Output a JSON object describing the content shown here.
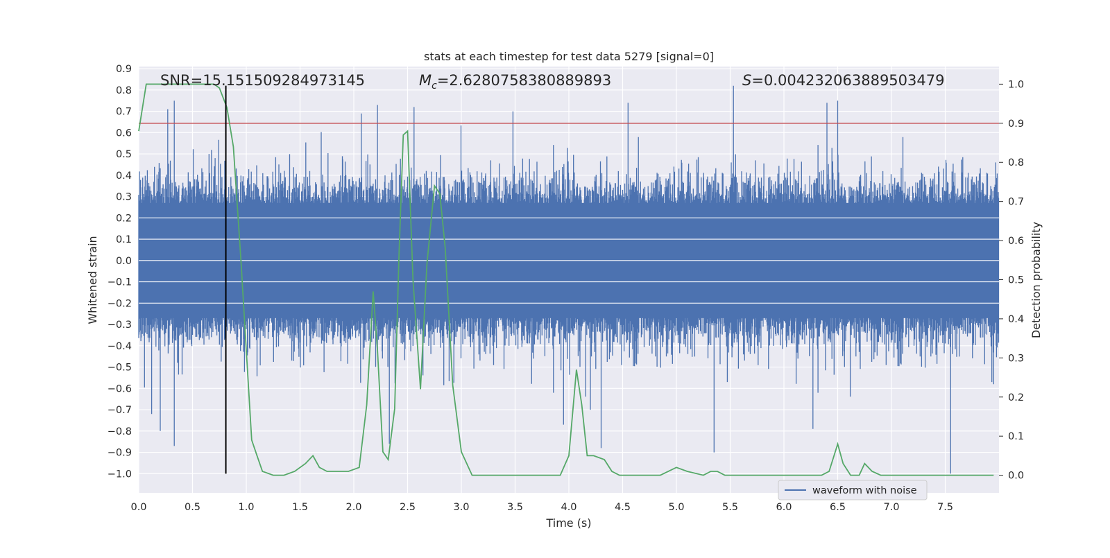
{
  "chart_data": {
    "type": "line",
    "title": "stats at each timestep for test data 5279 [signal=0]",
    "xlabel": "Time (s)",
    "ylabel": "Whitened strain",
    "y2label": "Detection probability",
    "xlim": [
      0.0,
      8.0
    ],
    "ylim": [
      -1.09,
      0.91
    ],
    "y2lim": [
      -0.045,
      1.045
    ],
    "xticks": [
      "0.0",
      "0.5",
      "1.0",
      "1.5",
      "2.0",
      "2.5",
      "3.0",
      "3.5",
      "4.0",
      "4.5",
      "5.0",
      "5.5",
      "6.0",
      "6.5",
      "7.0",
      "7.5"
    ],
    "yticks": [
      "0.9",
      "0.8",
      "0.7",
      "0.6",
      "0.5",
      "0.4",
      "0.3",
      "0.2",
      "0.1",
      "0.0",
      "−0.1",
      "−0.2",
      "−0.3",
      "−0.4",
      "−0.5",
      "−0.6",
      "−0.7",
      "−0.8",
      "−0.9",
      "−1.0"
    ],
    "y2ticks": [
      "1.0",
      "0.9",
      "0.8",
      "0.7",
      "0.6",
      "0.5",
      "0.4",
      "0.3",
      "0.2",
      "0.1",
      "0.0"
    ],
    "grid": true,
    "annotations": {
      "snr": "SNR=15.151509284973145",
      "mc_symbol": "M",
      "mc_subscript": "c",
      "mc_value": "=2.6280758380889893",
      "s_symbol": "S",
      "s_value": "=0.004232063889503479"
    },
    "legend": {
      "position": "lower right",
      "entries": [
        "waveform with noise"
      ]
    },
    "colors": {
      "waveform": "#4c72b0",
      "probability": "#55a868",
      "threshold": "#c44e52",
      "marker": "#000000",
      "background": "#eaeaf2"
    },
    "threshold_probability": 0.9,
    "marker_line": {
      "x": 0.81,
      "y_from": -1.0,
      "y_to": 0.82
    },
    "waveform": {
      "description_values": "noisy whitened strain sampled across 0-8 s",
      "typical_envelope": [
        -0.35,
        0.45
      ],
      "peaks": [
        {
          "x": 0.27,
          "y": 0.71
        },
        {
          "x": 0.33,
          "y": 0.75
        },
        {
          "x": 0.33,
          "y": -0.87
        },
        {
          "x": 0.2,
          "y": -0.8
        },
        {
          "x": 0.12,
          "y": -0.72
        },
        {
          "x": 2.07,
          "y": 0.69
        },
        {
          "x": 2.22,
          "y": 0.73
        },
        {
          "x": 2.33,
          "y": -0.86
        },
        {
          "x": 2.56,
          "y": 0.72
        },
        {
          "x": 3.48,
          "y": 0.7
        },
        {
          "x": 3.95,
          "y": -0.77
        },
        {
          "x": 4.2,
          "y": -0.7
        },
        {
          "x": 4.3,
          "y": -0.88
        },
        {
          "x": 4.55,
          "y": 0.74
        },
        {
          "x": 5.35,
          "y": -0.9
        },
        {
          "x": 5.53,
          "y": 0.82
        },
        {
          "x": 6.27,
          "y": -0.79
        },
        {
          "x": 6.5,
          "y": 0.75
        },
        {
          "x": 6.4,
          "y": 0.74
        },
        {
          "x": 7.55,
          "y": -1.0
        },
        {
          "x": 7.95,
          "y": -0.58
        }
      ]
    },
    "probability_series": {
      "name": "",
      "x": [
        0.0,
        0.07,
        0.15,
        0.25,
        0.4,
        0.55,
        0.7,
        0.75,
        0.82,
        0.88,
        0.95,
        1.0,
        1.05,
        1.1,
        1.15,
        1.25,
        1.35,
        1.45,
        1.55,
        1.62,
        1.68,
        1.75,
        1.85,
        1.95,
        2.05,
        2.12,
        2.18,
        2.22,
        2.27,
        2.32,
        2.38,
        2.42,
        2.46,
        2.5,
        2.55,
        2.62,
        2.68,
        2.75,
        2.8,
        2.85,
        2.92,
        3.0,
        3.1,
        3.2,
        3.35,
        3.5,
        3.65,
        3.8,
        3.92,
        4.0,
        4.07,
        4.12,
        4.17,
        4.23,
        4.33,
        4.4,
        4.47,
        4.55,
        4.7,
        4.85,
        5.0,
        5.1,
        5.25,
        5.32,
        5.38,
        5.45,
        5.6,
        5.8,
        6.0,
        6.2,
        6.35,
        6.42,
        6.5,
        6.55,
        6.62,
        6.7,
        6.75,
        6.82,
        6.9,
        7.1,
        7.3,
        7.5,
        7.7,
        7.95
      ],
      "y": [
        0.88,
        1.0,
        1.0,
        1.0,
        1.0,
        1.0,
        1.0,
        0.99,
        0.94,
        0.84,
        0.55,
        0.32,
        0.09,
        0.05,
        0.01,
        0.0,
        0.0,
        0.01,
        0.03,
        0.05,
        0.02,
        0.01,
        0.01,
        0.01,
        0.02,
        0.18,
        0.47,
        0.32,
        0.06,
        0.04,
        0.17,
        0.56,
        0.87,
        0.88,
        0.5,
        0.22,
        0.54,
        0.74,
        0.72,
        0.58,
        0.23,
        0.06,
        0.0,
        0.0,
        0.0,
        0.0,
        0.0,
        0.0,
        0.0,
        0.05,
        0.27,
        0.18,
        0.05,
        0.05,
        0.04,
        0.01,
        0.0,
        0.0,
        0.0,
        0.0,
        0.02,
        0.01,
        0.0,
        0.01,
        0.01,
        0.0,
        0.0,
        0.0,
        0.0,
        0.0,
        0.0,
        0.01,
        0.08,
        0.03,
        0.0,
        0.0,
        0.03,
        0.01,
        0.0,
        0.0,
        0.0,
        0.0,
        0.0,
        0.0
      ]
    }
  }
}
